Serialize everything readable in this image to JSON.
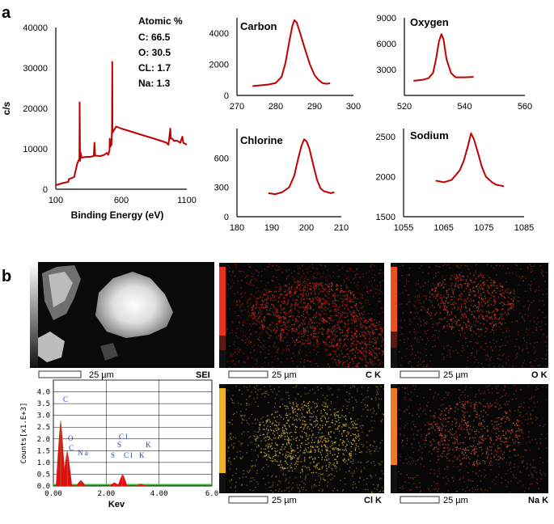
{
  "panel_a_label": "a",
  "panel_b_label": "b",
  "atomic": {
    "heading": "Atomic %",
    "lines": [
      "C: 66.5",
      "O: 30.5",
      "CL: 1.7",
      "Na: 1.3"
    ]
  },
  "chart_data": [
    {
      "id": "survey",
      "type": "line",
      "title": "",
      "xlabel": "Binding Energy (eV)",
      "ylabel": "c/s",
      "xlim": [
        100,
        1100
      ],
      "ylim": [
        0,
        40000
      ],
      "xticks": [
        "100",
        "600",
        "1100"
      ],
      "yticks": [
        "0",
        "10000",
        "20000",
        "30000",
        "40000"
      ],
      "points": [
        [
          100,
          1000
        ],
        [
          150,
          1500
        ],
        [
          195,
          1800
        ],
        [
          200,
          2500
        ],
        [
          240,
          3000
        ],
        [
          265,
          6500
        ],
        [
          280,
          7500
        ],
        [
          282,
          21500
        ],
        [
          285,
          7000
        ],
        [
          290,
          9000
        ],
        [
          296,
          7800
        ],
        [
          330,
          8000
        ],
        [
          360,
          8000
        ],
        [
          390,
          8200
        ],
        [
          395,
          11500
        ],
        [
          400,
          8300
        ],
        [
          440,
          8200
        ],
        [
          470,
          8500
        ],
        [
          490,
          9000
        ],
        [
          500,
          8500
        ],
        [
          510,
          9500
        ],
        [
          512,
          12500
        ],
        [
          516,
          10500
        ],
        [
          525,
          11000
        ],
        [
          529,
          15000
        ],
        [
          531,
          31500
        ],
        [
          533,
          14000
        ],
        [
          560,
          15500
        ],
        [
          600,
          15000
        ],
        [
          650,
          14500
        ],
        [
          700,
          14000
        ],
        [
          750,
          13500
        ],
        [
          800,
          13000
        ],
        [
          850,
          12500
        ],
        [
          900,
          12000
        ],
        [
          945,
          11500
        ],
        [
          960,
          11000
        ],
        [
          974,
          15000
        ],
        [
          978,
          12500
        ],
        [
          990,
          12500
        ],
        [
          1000,
          12000
        ],
        [
          1025,
          12000
        ],
        [
          1035,
          11800
        ],
        [
          1050,
          11500
        ],
        [
          1066,
          13000
        ],
        [
          1072,
          11500
        ],
        [
          1100,
          11000
        ]
      ]
    },
    {
      "id": "carbon",
      "type": "line",
      "title": "Carbon",
      "xlim": [
        270,
        300
      ],
      "ylim": [
        0,
        5000
      ],
      "xticks": [
        "270",
        "280",
        "290",
        "300"
      ],
      "yticks": [
        "0",
        "2000",
        "4000"
      ],
      "points": [
        [
          274,
          600
        ],
        [
          276,
          650
        ],
        [
          278,
          700
        ],
        [
          280,
          800
        ],
        [
          281.5,
          1200
        ],
        [
          282.5,
          2100
        ],
        [
          283.5,
          3500
        ],
        [
          284.3,
          4500
        ],
        [
          284.8,
          4850
        ],
        [
          285.4,
          4700
        ],
        [
          286.3,
          4000
        ],
        [
          287.5,
          3000
        ],
        [
          288.8,
          2000
        ],
        [
          290,
          1300
        ],
        [
          291,
          1000
        ],
        [
          292,
          800
        ],
        [
          293,
          750
        ],
        [
          294,
          780
        ]
      ]
    },
    {
      "id": "oxygen",
      "type": "line",
      "title": "Oxygen",
      "xlim": [
        520,
        560
      ],
      "ylim": [
        0,
        9000
      ],
      "xticks": [
        "520",
        "540",
        "560"
      ],
      "yticks": [
        "3000",
        "6000",
        "9000"
      ],
      "points": [
        [
          523,
          1700
        ],
        [
          526,
          1800
        ],
        [
          528,
          2000
        ],
        [
          529.5,
          2600
        ],
        [
          530.5,
          4200
        ],
        [
          531.5,
          6300
        ],
        [
          532.3,
          7100
        ],
        [
          533,
          6500
        ],
        [
          534,
          4200
        ],
        [
          535.5,
          2600
        ],
        [
          537,
          2100
        ],
        [
          540,
          2100
        ],
        [
          543,
          2150
        ]
      ]
    },
    {
      "id": "chlorine",
      "type": "line",
      "title": "Chlorine",
      "xlim": [
        180,
        210
      ],
      "ylim": [
        0,
        900
      ],
      "xticks": [
        "180",
        "190",
        "200",
        "210"
      ],
      "yticks": [
        "0",
        "300",
        "600"
      ],
      "points": [
        [
          189,
          240
        ],
        [
          191,
          230
        ],
        [
          193,
          250
        ],
        [
          195,
          300
        ],
        [
          196.5,
          420
        ],
        [
          197.5,
          580
        ],
        [
          198.5,
          720
        ],
        [
          199.3,
          790
        ],
        [
          200,
          770
        ],
        [
          200.8,
          700
        ],
        [
          202,
          520
        ],
        [
          203,
          380
        ],
        [
          204,
          290
        ],
        [
          205,
          260
        ],
        [
          207,
          240
        ],
        [
          208,
          250
        ]
      ]
    },
    {
      "id": "sodium",
      "type": "line",
      "title": "Sodium",
      "xlim": [
        1055,
        1085
      ],
      "ylim": [
        1500,
        2600
      ],
      "xticks": [
        "1055",
        "1065",
        "1075",
        "1085"
      ],
      "yticks": [
        "1500",
        "2000",
        "2500"
      ],
      "points": [
        [
          1063,
          1950
        ],
        [
          1065,
          1930
        ],
        [
          1067,
          1960
        ],
        [
          1069,
          2080
        ],
        [
          1070,
          2200
        ],
        [
          1071,
          2380
        ],
        [
          1071.8,
          2540
        ],
        [
          1072.5,
          2470
        ],
        [
          1073.5,
          2300
        ],
        [
          1074.5,
          2120
        ],
        [
          1075.5,
          2000
        ],
        [
          1077,
          1930
        ],
        [
          1078,
          1900
        ],
        [
          1080,
          1880
        ]
      ]
    },
    {
      "id": "eds",
      "type": "area",
      "title": "",
      "xlabel": "Kev",
      "ylabel": "Counts[x1.E+3]",
      "xlim": [
        0,
        6
      ],
      "ylim": [
        0,
        4.5
      ],
      "xticks": [
        "0.00",
        "2.00",
        "4.00",
        "6.0"
      ],
      "yticks": [
        "0.0",
        "0.5",
        "1.0",
        "1.5",
        "2.0",
        "2.5",
        "3.0",
        "3.5",
        "4.0"
      ],
      "peaks": [
        {
          "label": "C",
          "kev": 0.277,
          "value": 2.8
        },
        {
          "label": "O",
          "kev": 0.525,
          "value": 1.5
        },
        {
          "label": "Na",
          "kev": 1.04,
          "value": 0.25
        },
        {
          "label": "S",
          "kev": 2.31,
          "value": 0.15
        },
        {
          "label": "Cl",
          "kev": 2.62,
          "value": 0.5
        },
        {
          "label": "K",
          "kev": 3.31,
          "value": 0.1
        }
      ],
      "annotations": [
        "C",
        "O",
        "C",
        "N a",
        "C l",
        "S",
        "S",
        "C l",
        "K",
        "K"
      ]
    }
  ],
  "maps": {
    "scale": "25 µm",
    "sem_label": "SEI",
    "c_label": "C K",
    "o_label": "O K",
    "cl_label": "Cl K",
    "na_label": "Na K"
  },
  "colors": {
    "curve": "#c00000",
    "carbon_map": "#e3261a",
    "oxygen_map": "#d23a1c",
    "chlorine_map": "#d6b23a",
    "sodium_map": "#d8502a"
  }
}
